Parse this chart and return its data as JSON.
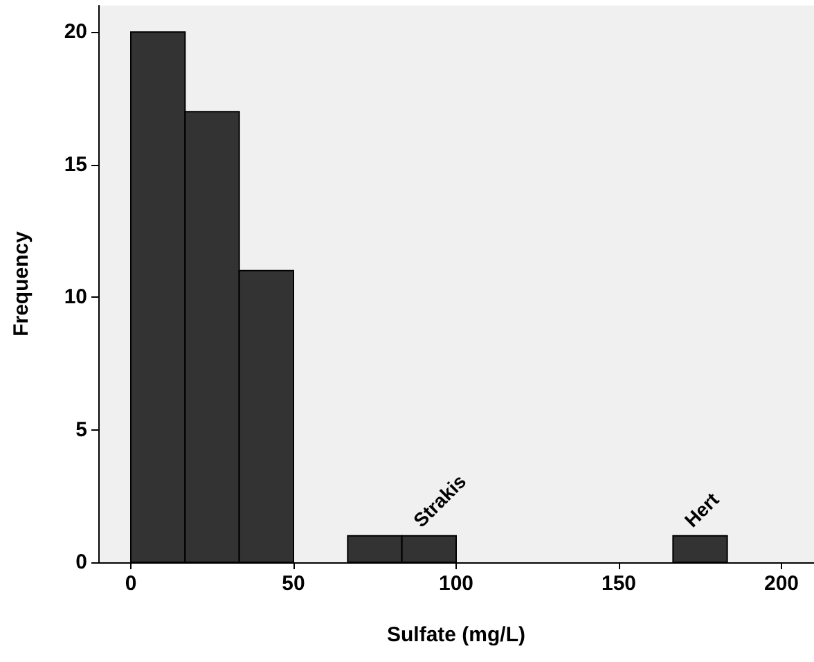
{
  "chart_data": {
    "type": "histogram",
    "xlabel": "Sulfate (mg/L)",
    "ylabel": "Frequency",
    "color": "#333333",
    "bins": [
      0,
      16.67,
      33.33,
      50,
      66.67,
      83.33,
      100,
      116.67,
      133.33,
      150,
      166.67,
      183.33
    ],
    "values": [
      20,
      17,
      11,
      0,
      1,
      1,
      0,
      0,
      0,
      0,
      1
    ],
    "xlim": [
      -10,
      210
    ],
    "xticks": [
      0,
      50,
      100,
      150,
      200
    ],
    "ylim": [
      0,
      21
    ],
    "yticks": [
      0,
      5,
      10,
      15,
      20
    ],
    "grid": false,
    "annotations": [
      {
        "text": "Strakis",
        "x": 91.67,
        "y": 1
      },
      {
        "text": "Hert",
        "x": 175,
        "y": 1
      }
    ]
  }
}
